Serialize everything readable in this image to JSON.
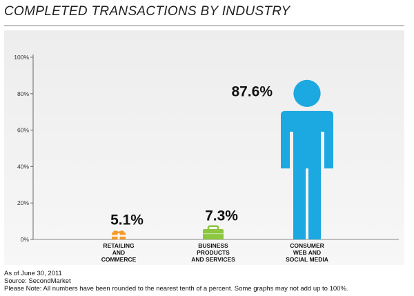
{
  "title": "COMPLETED TRANSACTIONS BY INDUSTRY",
  "notes": {
    "date": "As of June 30, 2011",
    "source": "Source: SecondMarket",
    "disclaimer": "Please Note: All numbers have been rounded to the nearest tenth of a percent. Some graphs may not add up to 100%."
  },
  "colors": {
    "retailing": "#f39a2b",
    "business": "#8dc63f",
    "consumer": "#1ca8e0"
  },
  "chart_data": {
    "type": "bar",
    "categories": [
      "RETAILING AND COMMERCE",
      "BUSINESS PRODUCTS AND SERVICES",
      "CONSUMER WEB AND SOCIAL MEDIA"
    ],
    "category_lines": [
      [
        "RETAILING",
        "AND",
        "COMMERCE"
      ],
      [
        "BUSINESS",
        "PRODUCTS",
        "AND SERVICES"
      ],
      [
        "CONSUMER",
        "WEB AND",
        "SOCIAL MEDIA"
      ]
    ],
    "values": [
      5.1,
      7.3,
      87.6
    ],
    "labels": [
      "5.1%",
      "7.3%",
      "87.6%"
    ],
    "icons": [
      "gift-icon",
      "briefcase-icon",
      "person-icon"
    ],
    "yticks": [
      "0%",
      "20%",
      "40%",
      "60%",
      "80%",
      "100%"
    ],
    "ylim": [
      0,
      100
    ],
    "title": "COMPLETED TRANSACTIONS BY INDUSTRY"
  }
}
